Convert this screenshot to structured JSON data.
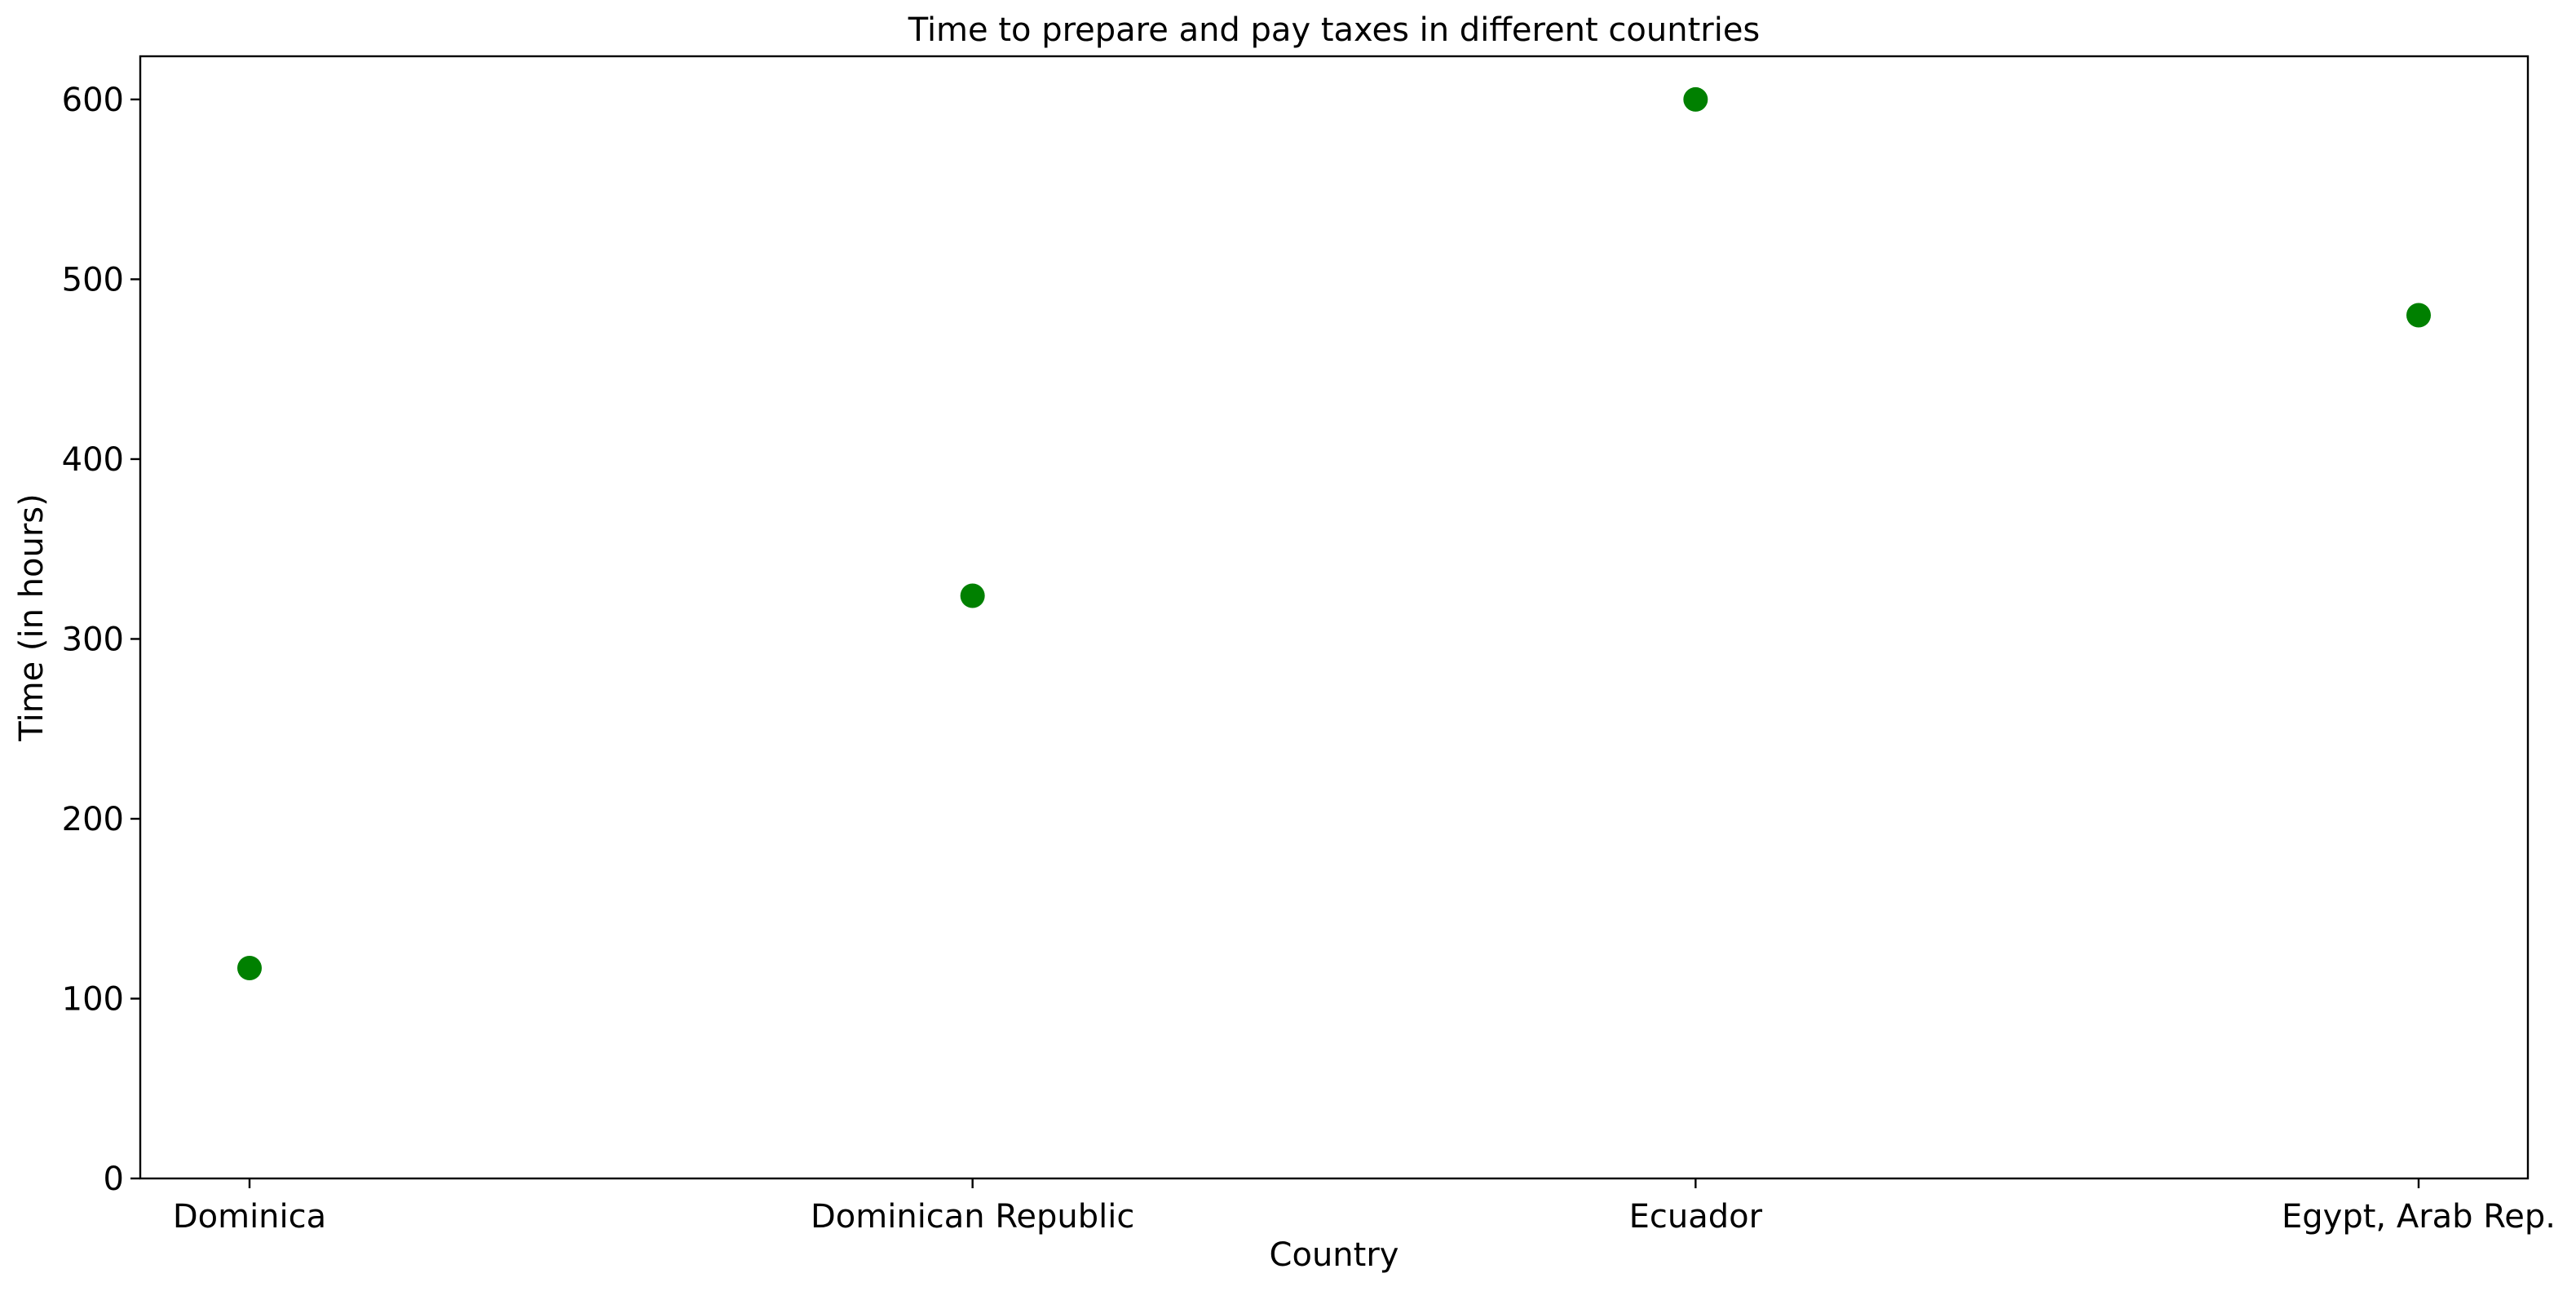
{
  "chart_data": {
    "type": "scatter",
    "title": "Time to prepare and pay taxes in different countries",
    "xlabel": "Country",
    "ylabel": "Time (in hours)",
    "categories": [
      "Dominica",
      "Dominican Republic",
      "Ecuador",
      "Egypt, Arab Rep."
    ],
    "values": [
      117,
      324,
      600,
      480
    ],
    "ylim": [
      0,
      624
    ],
    "yticks": [
      0,
      100,
      200,
      300,
      400,
      500,
      600
    ],
    "grid": false,
    "legend": "none",
    "marker_color": "#008000"
  }
}
